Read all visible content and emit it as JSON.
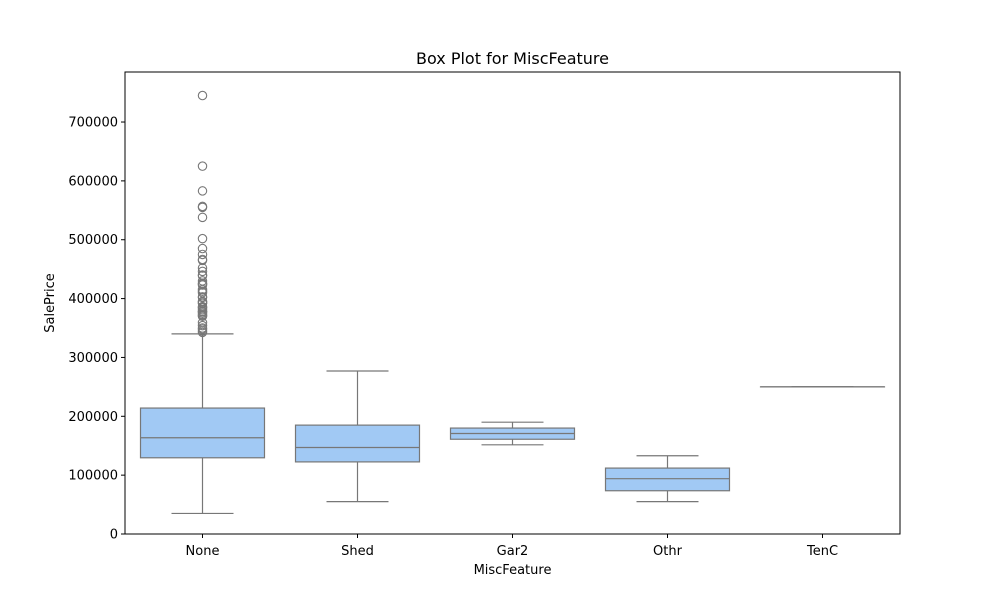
{
  "chart_data": {
    "type": "box",
    "title": "Box Plot for MiscFeature",
    "xlabel": "MiscFeature",
    "ylabel": "SalePrice",
    "ylim": [
      0,
      785000
    ],
    "yticks": [
      0,
      100000,
      200000,
      300000,
      400000,
      500000,
      600000,
      700000
    ],
    "ytick_labels": [
      "0",
      "100000",
      "200000",
      "300000",
      "400000",
      "500000",
      "600000",
      "700000"
    ],
    "grid": false,
    "colors": {
      "box_fill": "#a1c9f4",
      "line": "#777777",
      "axis": "#000000"
    },
    "categories": [
      "None",
      "Shed",
      "Gar2",
      "Othr",
      "TenC"
    ],
    "boxes": [
      {
        "category": "None",
        "whisker_low": 34900,
        "q1": 129500,
        "median": 163500,
        "q3": 214000,
        "whisker_high": 340000,
        "outliers": [
          745000,
          625000,
          582933,
          556581,
          555000,
          538000,
          501837,
          485000,
          475000,
          466500,
          465000,
          451950,
          446261,
          440000,
          438780,
          430000,
          426000,
          424870,
          423000,
          415298,
          412500,
          410000,
          402861,
          402000,
          395192,
          394617,
          392500,
          392000,
          386250,
          385000,
          383970,
          381000,
          378500,
          377500,
          377426,
          375000,
          372500,
          370878,
          369900,
          359100,
          354000,
          350000,
          348000,
          345000,
          342643
        ]
      },
      {
        "category": "Shed",
        "whisker_low": 55000,
        "q1": 122500,
        "median": 147000,
        "q3": 185000,
        "whisker_high": 277000,
        "outliers": []
      },
      {
        "category": "Gar2",
        "whisker_low": 151500,
        "q1": 161000,
        "median": 170750,
        "q3": 180000,
        "whisker_high": 190000,
        "outliers": []
      },
      {
        "category": "Othr",
        "whisker_low": 55000,
        "q1": 73500,
        "median": 94000,
        "q3": 112000,
        "whisker_high": 133000,
        "outliers": []
      },
      {
        "category": "TenC",
        "whisker_low": 250000,
        "q1": 250000,
        "median": 250000,
        "q3": 250000,
        "whisker_high": 250000,
        "outliers": []
      }
    ]
  }
}
